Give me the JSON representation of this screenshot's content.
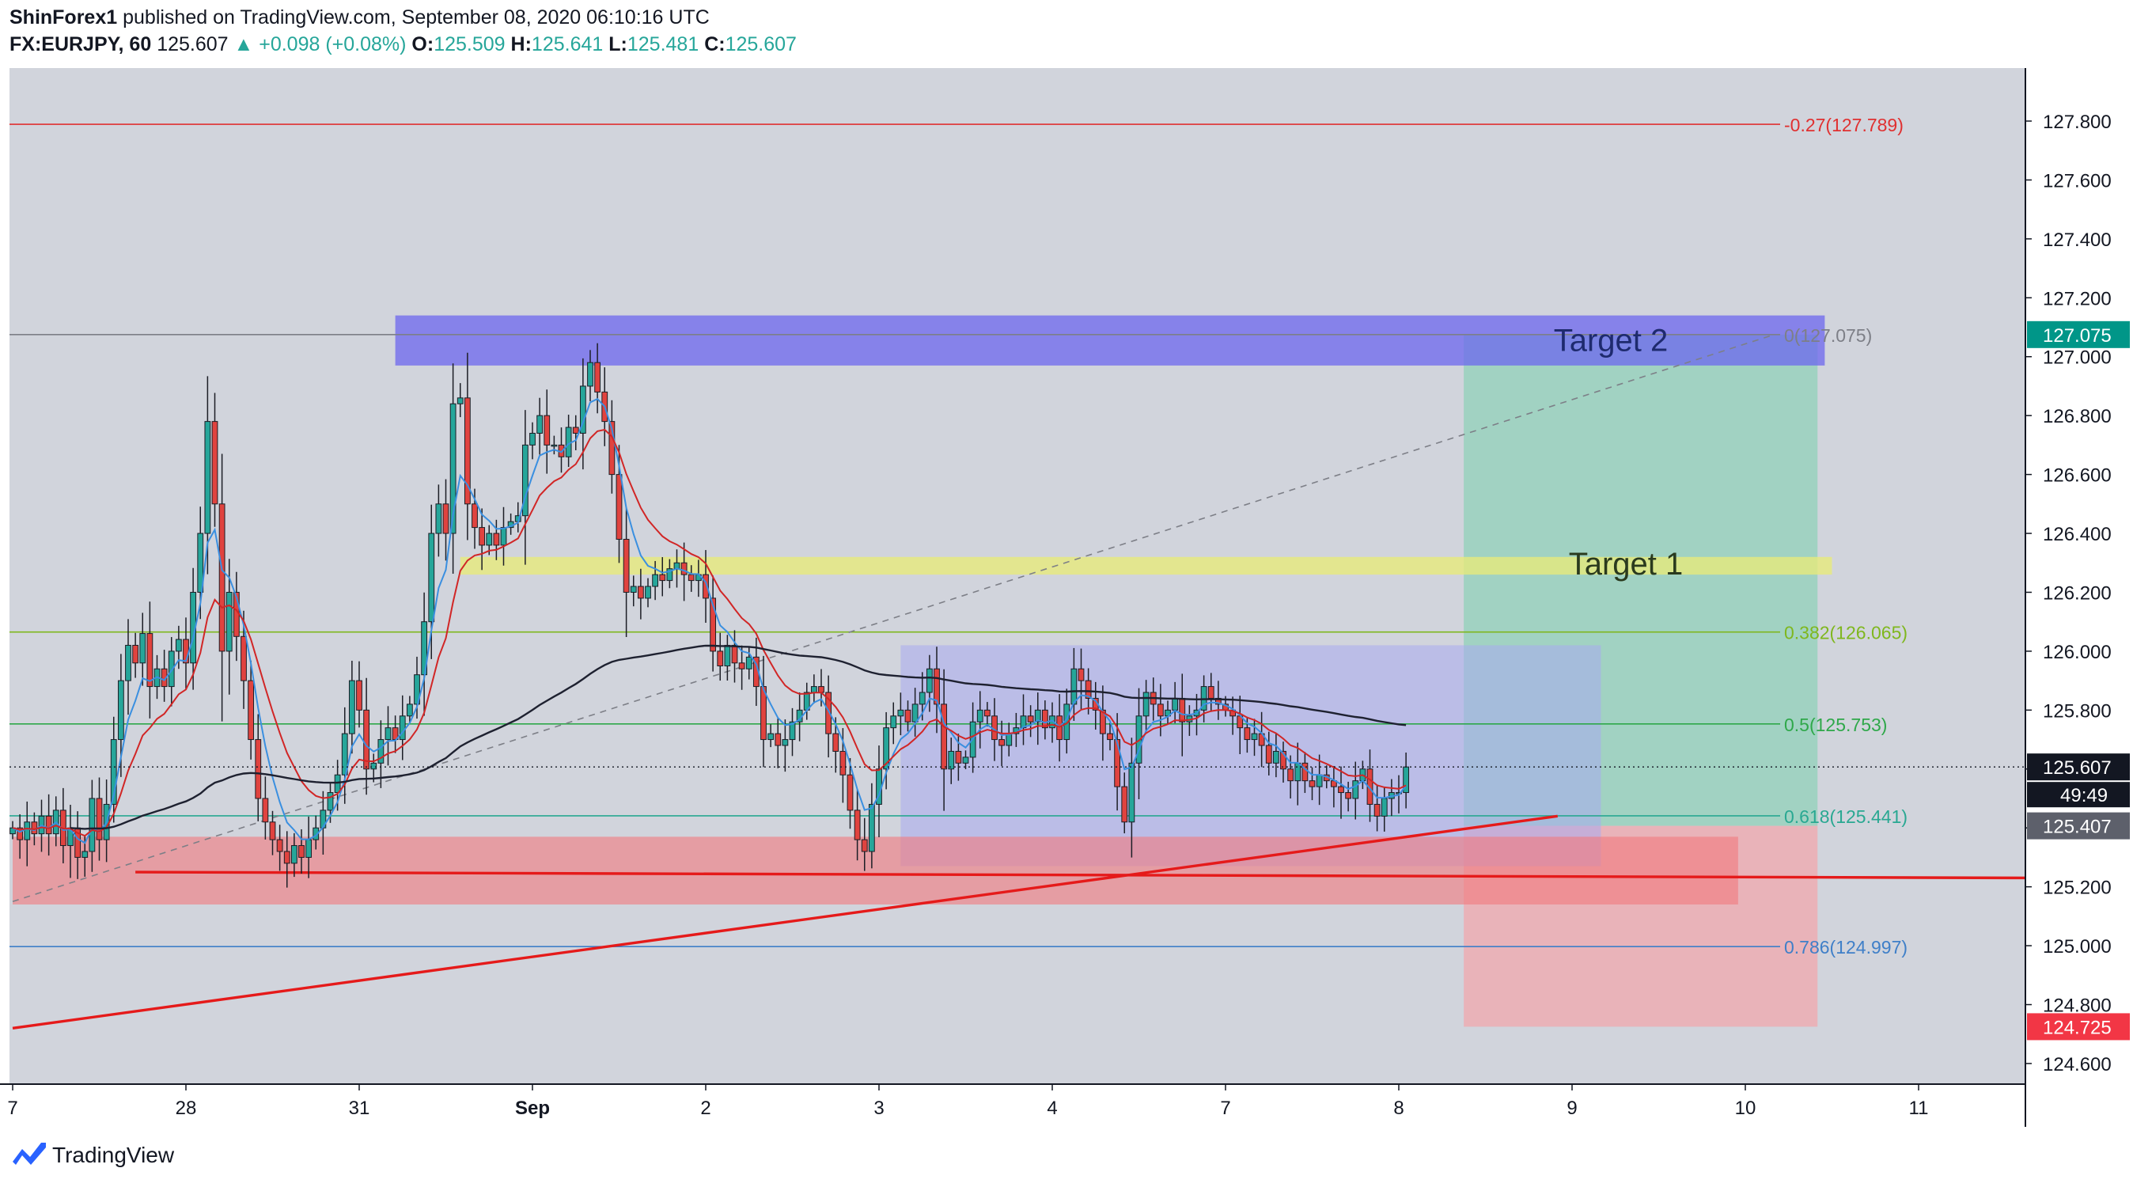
{
  "header": {
    "author": "ShinForex1",
    "published_text": "published on TradingView.com, September 08, 2020 06:10:16 UTC",
    "symbol": "FX:EURJPY, 60",
    "last": "125.607",
    "change": "▲ +0.098 (+0.08%)",
    "o_label": "O:",
    "o_value": "125.509",
    "h_label": "H:",
    "h_value": "125.641",
    "l_label": "L:",
    "l_value": "125.481",
    "c_label": "C:",
    "c_value": "125.607"
  },
  "footer": {
    "brand": "TradingView"
  },
  "chart_data": {
    "type": "candlestick",
    "symbol": "FX:EURJPY",
    "timeframe": "60",
    "ylim": [
      124.53,
      127.98
    ],
    "y_ticks": [
      124.6,
      124.8,
      125.0,
      125.2,
      125.4,
      125.6,
      125.8,
      126.0,
      126.2,
      126.4,
      126.6,
      126.8,
      127.0,
      127.2,
      127.4,
      127.6,
      127.8
    ],
    "x_axis": {
      "ticks": [
        {
          "label": "7",
          "bar": 0
        },
        {
          "label": "28",
          "bar": 24
        },
        {
          "label": "31",
          "bar": 48
        },
        {
          "label": "Sep",
          "bar": 72
        },
        {
          "label": "2",
          "bar": 96
        },
        {
          "label": "3",
          "bar": 120
        },
        {
          "label": "4",
          "bar": 144
        },
        {
          "label": "7",
          "bar": 168
        },
        {
          "label": "8",
          "bar": 192
        },
        {
          "label": "9",
          "bar": 216
        },
        {
          "label": "10",
          "bar": 240
        },
        {
          "label": "11",
          "bar": 264
        }
      ]
    },
    "closes": [
      125.4,
      125.36,
      125.42,
      125.38,
      125.44,
      125.38,
      125.46,
      125.34,
      125.4,
      125.3,
      125.32,
      125.5,
      125.36,
      125.48,
      125.7,
      125.9,
      126.02,
      125.96,
      126.06,
      125.88,
      125.94,
      125.88,
      126.0,
      126.04,
      125.96,
      126.2,
      126.4,
      126.78,
      126.5,
      126.0,
      126.2,
      126.05,
      125.9,
      125.7,
      125.5,
      125.42,
      125.36,
      125.32,
      125.28,
      125.34,
      125.3,
      125.36,
      125.4,
      125.46,
      125.52,
      125.58,
      125.72,
      125.9,
      125.8,
      125.6,
      125.62,
      125.7,
      125.74,
      125.7,
      125.78,
      125.82,
      125.92,
      126.1,
      126.4,
      126.5,
      126.4,
      126.84,
      126.86,
      126.5,
      126.42,
      126.36,
      126.4,
      126.36,
      126.42,
      126.44,
      126.46,
      126.7,
      126.74,
      126.8,
      126.7,
      126.7,
      126.66,
      126.76,
      126.74,
      126.9,
      126.98,
      126.88,
      126.78,
      126.6,
      126.38,
      126.2,
      126.22,
      126.18,
      126.22,
      126.26,
      126.24,
      126.28,
      126.3,
      126.26,
      126.24,
      126.26,
      126.18,
      126.0,
      125.95,
      126.02,
      125.96,
      125.94,
      125.98,
      125.88,
      125.7,
      125.72,
      125.68,
      125.7,
      125.76,
      125.8,
      125.86,
      125.88,
      125.86,
      125.72,
      125.66,
      125.58,
      125.46,
      125.36,
      125.32,
      125.48,
      125.6,
      125.74,
      125.78,
      125.8,
      125.76,
      125.82,
      125.86,
      125.94,
      125.82,
      125.6,
      125.66,
      125.62,
      125.64,
      125.76,
      125.8,
      125.78,
      125.7,
      125.68,
      125.72,
      125.74,
      125.78,
      125.76,
      125.8,
      125.74,
      125.78,
      125.7,
      125.82,
      125.94,
      125.9,
      125.84,
      125.8,
      125.72,
      125.7,
      125.54,
      125.42,
      125.62,
      125.78,
      125.86,
      125.82,
      125.78,
      125.8,
      125.84,
      125.76,
      125.78,
      125.8,
      125.88,
      125.84,
      125.82,
      125.8,
      125.78,
      125.74,
      125.7,
      125.72,
      125.68,
      125.62,
      125.66,
      125.6,
      125.56,
      125.62,
      125.56,
      125.54,
      125.58,
      125.56,
      125.54,
      125.52,
      125.5,
      125.56,
      125.6,
      125.48,
      125.44,
      125.5,
      125.52,
      125.52,
      125.607
    ],
    "emas": [
      {
        "period": "fast",
        "color": "#3a8fe0"
      },
      {
        "period": "medium",
        "color": "#d12626"
      },
      {
        "period": "slow",
        "color": "#1e2130"
      }
    ],
    "fibonacci": [
      {
        "label": "-0.27(127.789)",
        "value": 127.789,
        "color": "#e03030"
      },
      {
        "label": "0(127.075)",
        "value": 127.075,
        "color": "#7d7f87"
      },
      {
        "label": "0.382(126.065)",
        "value": 126.065,
        "color": "#7fb71e"
      },
      {
        "label": "0.5(125.753)",
        "value": 125.753,
        "color": "#2fa84a"
      },
      {
        "label": "0.618(125.441)",
        "value": 125.441,
        "color": "#29a892"
      },
      {
        "label": "0.786(124.997)",
        "value": 124.997,
        "color": "#3f7fc8"
      }
    ],
    "zones": [
      {
        "name": "Target 2",
        "label": "Target 2",
        "from_bar": 53,
        "to_bar": 251,
        "y_low": 126.97,
        "y_high": 127.14,
        "color": "#6a62f0"
      },
      {
        "name": "Target 1",
        "label": "Target 1",
        "from_bar": 62,
        "to_bar": 252,
        "y_low": 126.26,
        "y_high": 126.32,
        "color": "#e8ea7a"
      },
      {
        "name": "range box",
        "label": "",
        "from_bar": 123,
        "to_bar": 220,
        "y_low": 125.27,
        "y_high": 126.02,
        "color": "#a9a9f0"
      },
      {
        "name": "support zone",
        "label": "",
        "from_bar": 0,
        "to_bar": 239,
        "y_low": 125.14,
        "y_high": 125.37,
        "color": "#f07a80"
      }
    ],
    "position": {
      "type": "long",
      "from_bar": 201,
      "to_bar": 250,
      "entry": 125.407,
      "target": 127.075,
      "stop": 124.725,
      "profit_color": "#8dd1b6",
      "loss_color": "#f0a8ae"
    },
    "trendlines": [
      {
        "name": "rising support",
        "from": [
          0,
          124.72
        ],
        "to": [
          214,
          125.44
        ],
        "color": "#e51a1a",
        "style": "solid"
      },
      {
        "name": "horizontal level",
        "from": [
          17,
          125.25
        ],
        "to": [
          280,
          125.23
        ],
        "color": "#e51a1a",
        "style": "solid"
      },
      {
        "name": "fib anchor",
        "from": [
          0,
          125.15
        ],
        "to": [
          244,
          127.075
        ],
        "color": "#7d7f87",
        "style": "dashed"
      }
    ],
    "price_labels": [
      {
        "text": "127.075",
        "value": 127.075,
        "bg": "#009688",
        "fg": "#ffffff"
      },
      {
        "text": "125.607",
        "value": 125.607,
        "bg": "#131722",
        "fg": "#ffffff",
        "countdown": "49:49"
      },
      {
        "text": "125.407",
        "value": 125.407,
        "bg": "#5d606b",
        "fg": "#ffffff"
      },
      {
        "text": "124.725",
        "value": 124.725,
        "bg": "#f23645",
        "fg": "#ffffff"
      }
    ],
    "colors": {
      "up": "#26a69a",
      "down": "#e0433f",
      "grid": "#d1d4dc",
      "axis_text": "#131722"
    }
  }
}
